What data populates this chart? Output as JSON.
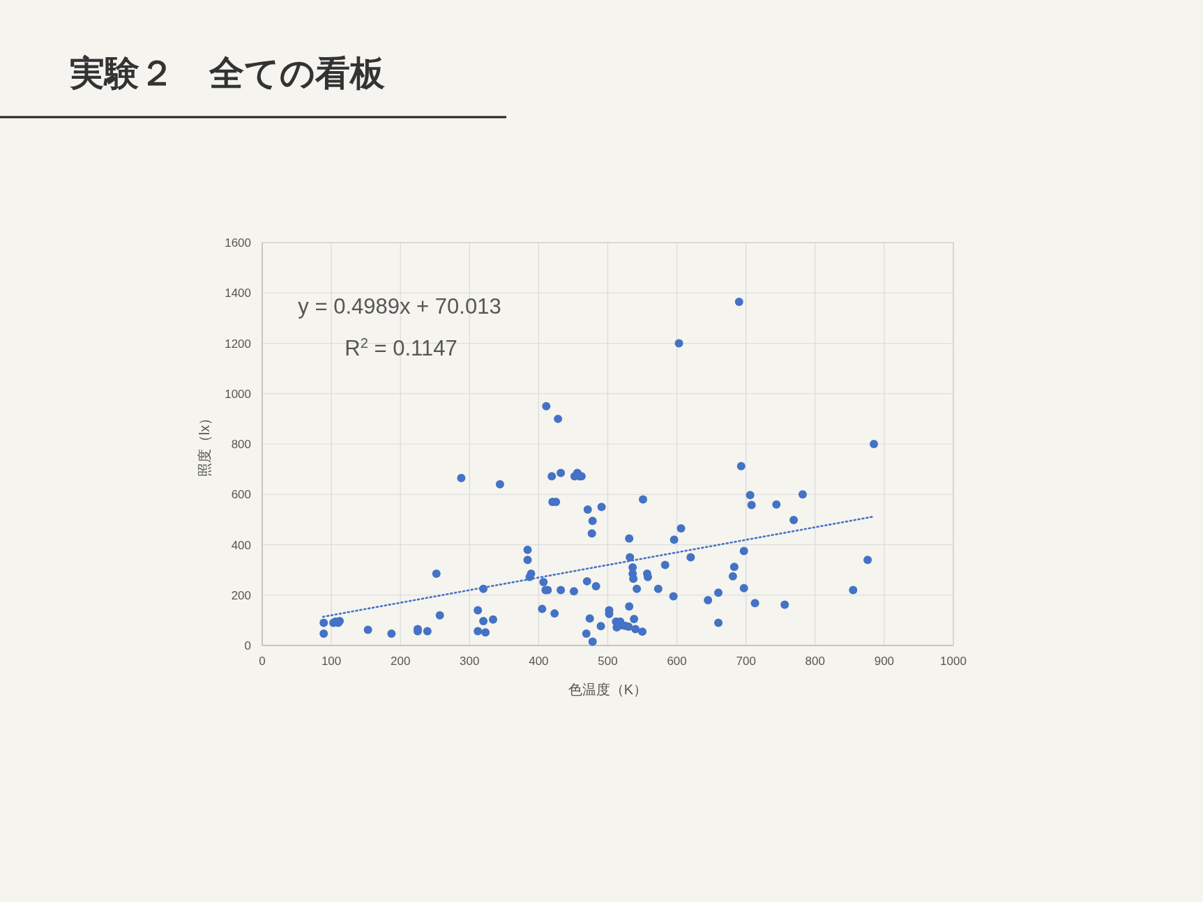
{
  "chart_data": {
    "type": "scatter",
    "title": "実験２　全ての看板",
    "xlabel": "色温度（K）",
    "ylabel": "照度（lx）",
    "annotations": [
      "y = 0.4989x + 70.013",
      "R$^{2}$ = 0.1147"
    ],
    "xlim": [
      0,
      1000
    ],
    "ylim": [
      0,
      1600
    ],
    "xticks": [
      0,
      100,
      200,
      300,
      400,
      500,
      600,
      700,
      800,
      900,
      1000
    ],
    "yticks": [
      0,
      200,
      400,
      600,
      800,
      1000,
      1200,
      1400,
      1600
    ],
    "grid": true,
    "series": [
      {
        "color": "#4472c4",
        "marker": "circle",
        "x": [
          89,
          89,
          103,
          106,
          110,
          112,
          153,
          187,
          225,
          225,
          239,
          252,
          257,
          288,
          312,
          312,
          320,
          320,
          323,
          334,
          344,
          384,
          384,
          387,
          389,
          405,
          407,
          410,
          413,
          411,
          419,
          420,
          425,
          428,
          423,
          432,
          432,
          451,
          452,
          456,
          459,
          462,
          470,
          471,
          469,
          474,
          477,
          478,
          478,
          483,
          490,
          491,
          502,
          502,
          512,
          513,
          518,
          520,
          525,
          530,
          531,
          531,
          532,
          536,
          536,
          537,
          538,
          540,
          542,
          550,
          551,
          557,
          558,
          573,
          583,
          595,
          596,
          606,
          620,
          645,
          660,
          660,
          681,
          683,
          690,
          693,
          697,
          697,
          706,
          708,
          713,
          744,
          756,
          769,
          782,
          855,
          876,
          885,
          603
        ],
        "values": [
          90,
          47,
          90,
          95,
          90,
          97,
          62,
          47,
          65,
          57,
          57,
          285,
          120,
          665,
          140,
          57,
          97,
          225,
          52,
          103,
          640,
          380,
          340,
          272,
          285,
          145,
          252,
          220,
          220,
          950,
          672,
          570,
          570,
          900,
          127,
          685,
          220,
          215,
          672,
          685,
          672,
          672,
          255,
          540,
          47,
          107,
          445,
          495,
          15,
          235,
          77,
          550,
          140,
          125,
          95,
          72,
          95,
          80,
          78,
          75,
          155,
          425,
          350,
          285,
          310,
          265,
          105,
          65,
          225,
          55,
          580,
          285,
          272,
          225,
          320,
          195,
          420,
          465,
          350,
          180,
          210,
          90,
          275,
          312,
          1365,
          712,
          375,
          228,
          597,
          558,
          168,
          560,
          162,
          498,
          600,
          220,
          340,
          800,
          1200
        ]
      },
      {
        "type": "line",
        "color": "#4472c4",
        "line_style": "dotted",
        "marker": "none",
        "x": [
          88,
          885
        ],
        "values": [
          114,
          512
        ]
      }
    ]
  }
}
